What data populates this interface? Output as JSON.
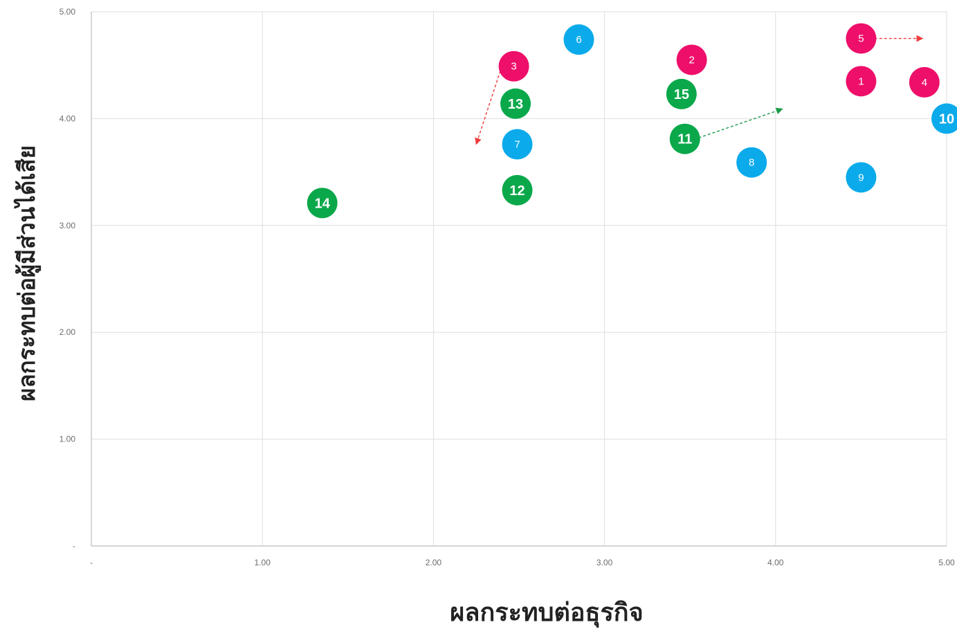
{
  "chart_data": {
    "type": "scatter",
    "xlabel": "ผลกระทบต่อธุรกิจ",
    "ylabel": "ผลกระทบต่อผู้มีส่วนได้เสีย",
    "xlim": [
      0,
      5
    ],
    "ylim": [
      0,
      5
    ],
    "x_ticks": [
      "-",
      "1.00",
      "2.00",
      "3.00",
      "4.00",
      "5.00"
    ],
    "y_ticks": [
      "-",
      "1.00",
      "2.00",
      "3.00",
      "4.00",
      "5.00"
    ],
    "grid": true,
    "colors": {
      "pink": "#ee0f6a",
      "blue": "#0aaaeb",
      "green": "#0aa84a",
      "arrow_red": "#ee3b3b",
      "arrow_green": "#1a9c45"
    },
    "points": [
      {
        "label": "1",
        "x": 4.5,
        "y": 4.35,
        "color": "pink"
      },
      {
        "label": "2",
        "x": 3.51,
        "y": 4.55,
        "color": "pink"
      },
      {
        "label": "3",
        "x": 2.47,
        "y": 4.49,
        "color": "pink"
      },
      {
        "label": "4",
        "x": 4.87,
        "y": 4.34,
        "color": "pink"
      },
      {
        "label": "5",
        "x": 4.5,
        "y": 4.75,
        "color": "pink"
      },
      {
        "label": "6",
        "x": 2.85,
        "y": 4.74,
        "color": "blue"
      },
      {
        "label": "7",
        "x": 2.49,
        "y": 3.76,
        "color": "blue"
      },
      {
        "label": "8",
        "x": 3.86,
        "y": 3.59,
        "color": "blue"
      },
      {
        "label": "9",
        "x": 4.5,
        "y": 3.45,
        "color": "blue"
      },
      {
        "label": "10",
        "x": 5.0,
        "y": 4.0,
        "color": "blue"
      },
      {
        "label": "11",
        "x": 3.47,
        "y": 3.81,
        "color": "green"
      },
      {
        "label": "12",
        "x": 2.49,
        "y": 3.33,
        "color": "green"
      },
      {
        "label": "13",
        "x": 2.48,
        "y": 4.14,
        "color": "green"
      },
      {
        "label": "14",
        "x": 1.35,
        "y": 3.21,
        "color": "green"
      },
      {
        "label": "15",
        "x": 3.45,
        "y": 4.23,
        "color": "green"
      }
    ],
    "arrows": [
      {
        "from": [
          4.55,
          4.75
        ],
        "to": [
          4.86,
          4.75
        ],
        "color": "arrow_red"
      },
      {
        "from": [
          2.4,
          4.49
        ],
        "to": [
          2.25,
          3.76
        ],
        "color": "arrow_red"
      },
      {
        "from": [
          3.55,
          3.82
        ],
        "to": [
          4.04,
          4.09
        ],
        "color": "arrow_green"
      }
    ]
  }
}
